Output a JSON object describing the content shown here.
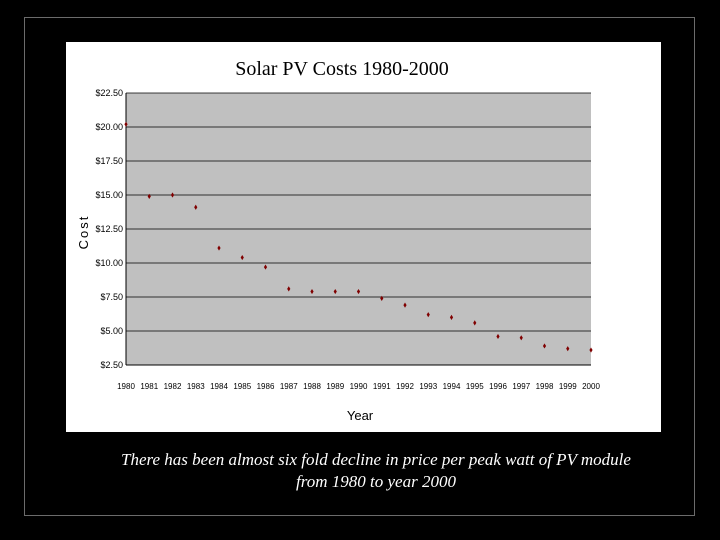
{
  "caption": {
    "line1": "There has been almost six fold decline in price per peak watt of PV module",
    "line2": "from 1980 to year 2000"
  },
  "colors": {
    "background": "#000000",
    "plot_area": "#c0c0c0",
    "marker": "#800000",
    "caption_text": "#ffffff"
  },
  "chart_data": {
    "type": "scatter",
    "title": "Solar PV Costs 1980-2000",
    "xlabel": "Year",
    "ylabel": "Cost",
    "categories": [
      "1980",
      "1981",
      "1982",
      "1983",
      "1984",
      "1985",
      "1986",
      "1987",
      "1988",
      "1989",
      "1990",
      "1991",
      "1992",
      "1993",
      "1994",
      "1995",
      "1996",
      "1997",
      "1998",
      "1999",
      "2000"
    ],
    "values": [
      20.2,
      14.9,
      15.0,
      14.1,
      11.1,
      10.4,
      9.7,
      8.1,
      7.9,
      7.9,
      7.9,
      7.4,
      6.9,
      6.2,
      6.0,
      5.6,
      4.6,
      4.5,
      3.9,
      3.7,
      3.6
    ],
    "y_ticks": [
      2.5,
      5,
      7.5,
      10,
      12.5,
      15,
      17.5,
      20,
      22.5
    ],
    "y_tick_labels": [
      "$2.50",
      "$5.00",
      "$7.50",
      "$10.00",
      "$12.50",
      "$15.00",
      "$17.50",
      "$20.00",
      "$22.50"
    ],
    "ylim": [
      2.5,
      22.5
    ],
    "grid": true,
    "legend": "none"
  }
}
